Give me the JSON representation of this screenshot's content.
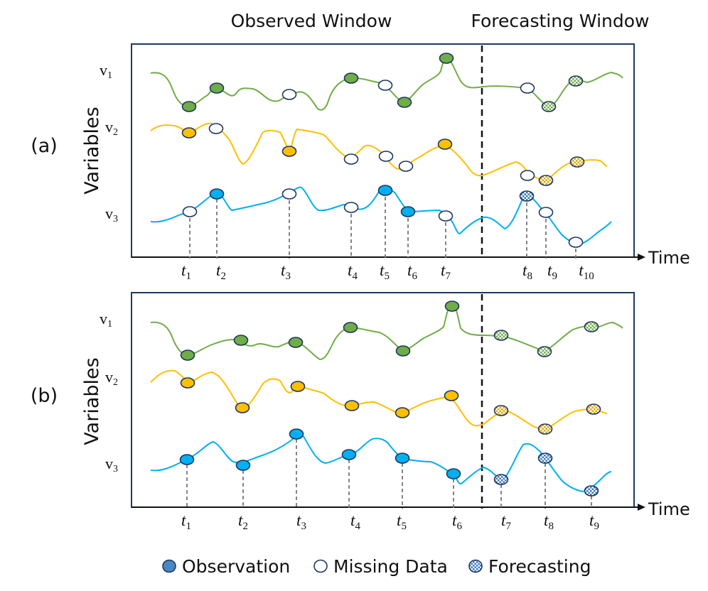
{
  "header": {
    "observed": "Observed Window",
    "forecasting": "Forecasting Window"
  },
  "axis": {
    "y_label": "Variables",
    "x_label": "Time"
  },
  "variables": [
    "v",
    "v",
    "v"
  ],
  "variable_subs": [
    "1",
    "2",
    "3"
  ],
  "panels": [
    {
      "label": "(a)",
      "time_labels": [
        "t",
        "t",
        "t",
        "t",
        "t",
        "t",
        "t",
        "t",
        "t",
        "t"
      ],
      "time_subs": [
        "1",
        "2",
        "3",
        "4",
        "5",
        "6",
        "7",
        "8",
        "9",
        "10"
      ]
    },
    {
      "label": "(b)",
      "time_labels": [
        "t",
        "t",
        "t",
        "t",
        "t",
        "t",
        "t",
        "t",
        "t"
      ],
      "time_subs": [
        "1",
        "2",
        "3",
        "4",
        "5",
        "6",
        "7",
        "8",
        "9"
      ]
    }
  ],
  "legend": {
    "observation": "Observation",
    "missing": "Missing Data",
    "forecasting": "Forecasting"
  },
  "colors": {
    "v1": "#70ad47",
    "v2": "#ffc000",
    "v3": "#00b0f0",
    "frame": "#1f3864",
    "legend_obs": "#4a86c5"
  }
}
